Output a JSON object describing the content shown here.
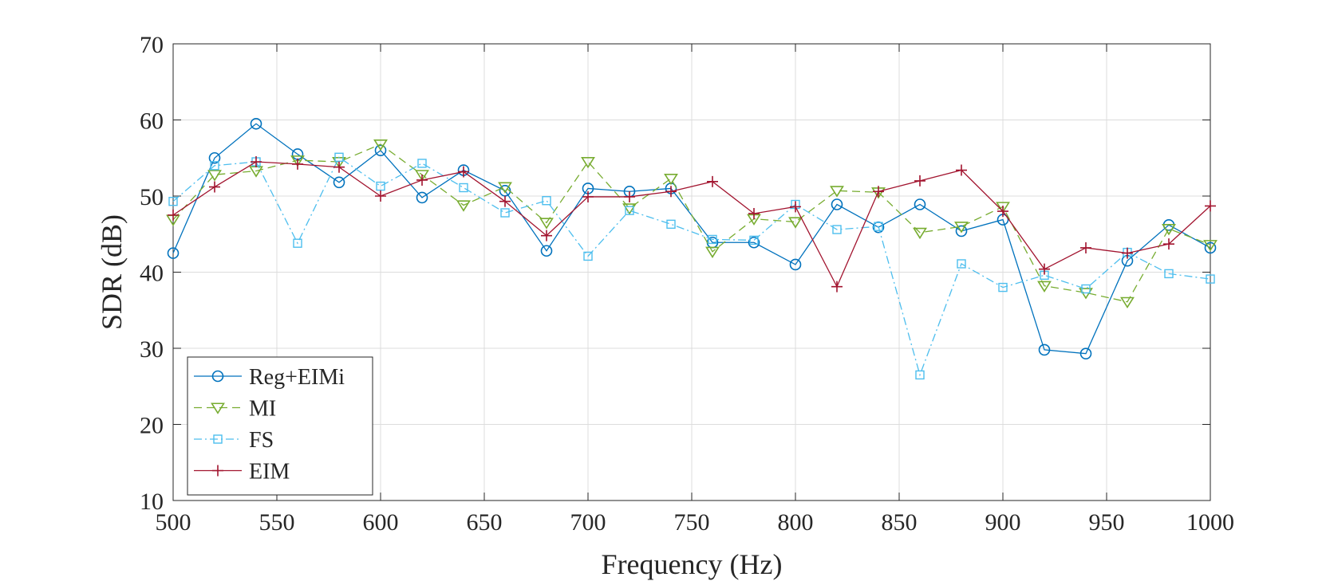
{
  "chart_data": {
    "type": "line",
    "title": "",
    "xlabel": "Frequency (Hz)",
    "ylabel": "SDR (dB)",
    "xlim": [
      500,
      1000
    ],
    "ylim": [
      10,
      70
    ],
    "xticks": [
      500,
      550,
      600,
      650,
      700,
      750,
      800,
      850,
      900,
      950,
      1000
    ],
    "yticks": [
      10,
      20,
      30,
      40,
      50,
      60,
      70
    ],
    "grid": true,
    "legend_position": "bottom-left",
    "x": [
      500,
      520,
      540,
      560,
      580,
      600,
      620,
      640,
      660,
      680,
      700,
      720,
      740,
      760,
      780,
      800,
      820,
      840,
      860,
      880,
      900,
      920,
      940,
      960,
      980,
      1000
    ],
    "series": [
      {
        "name": "Reg+EIMi",
        "color": "#0072BD",
        "line_style": "solid",
        "marker": "circle",
        "values": [
          42.5,
          55.0,
          59.5,
          55.5,
          51.8,
          56.0,
          49.8,
          53.4,
          50.7,
          42.8,
          51.0,
          50.6,
          51.0,
          43.9,
          43.9,
          41.0,
          48.9,
          45.9,
          48.9,
          45.4,
          46.9,
          29.8,
          29.3,
          41.5,
          46.2,
          43.2
        ]
      },
      {
        "name": "MI",
        "color": "#77AC30",
        "line_style": "dashed",
        "marker": "triangle-down",
        "values": [
          46.9,
          52.8,
          53.3,
          54.7,
          54.5,
          56.8,
          52.8,
          48.8,
          51.2,
          46.5,
          54.5,
          48.4,
          52.3,
          42.7,
          47.0,
          46.6,
          50.7,
          50.5,
          45.2,
          46.0,
          48.6,
          38.2,
          37.3,
          36.1,
          45.7,
          43.6
        ]
      },
      {
        "name": "FS",
        "color": "#4DBEEE",
        "line_style": "dashdot",
        "marker": "square",
        "values": [
          49.3,
          54.0,
          54.5,
          43.8,
          55.1,
          51.3,
          54.3,
          51.1,
          47.8,
          49.4,
          42.1,
          48.1,
          46.3,
          44.3,
          44.2,
          48.9,
          45.6,
          46.0,
          26.5,
          41.1,
          38.0,
          39.6,
          37.8,
          42.6,
          39.8,
          39.1
        ]
      },
      {
        "name": "EIM",
        "color": "#A2142F",
        "line_style": "solid",
        "marker": "plus",
        "values": [
          47.5,
          51.2,
          54.5,
          54.2,
          53.8,
          50.0,
          52.1,
          53.2,
          49.3,
          44.8,
          49.9,
          49.9,
          50.6,
          51.9,
          47.7,
          48.6,
          38.1,
          50.6,
          52.0,
          53.4,
          48.0,
          40.4,
          43.2,
          42.5,
          43.7,
          48.7
        ]
      }
    ]
  }
}
